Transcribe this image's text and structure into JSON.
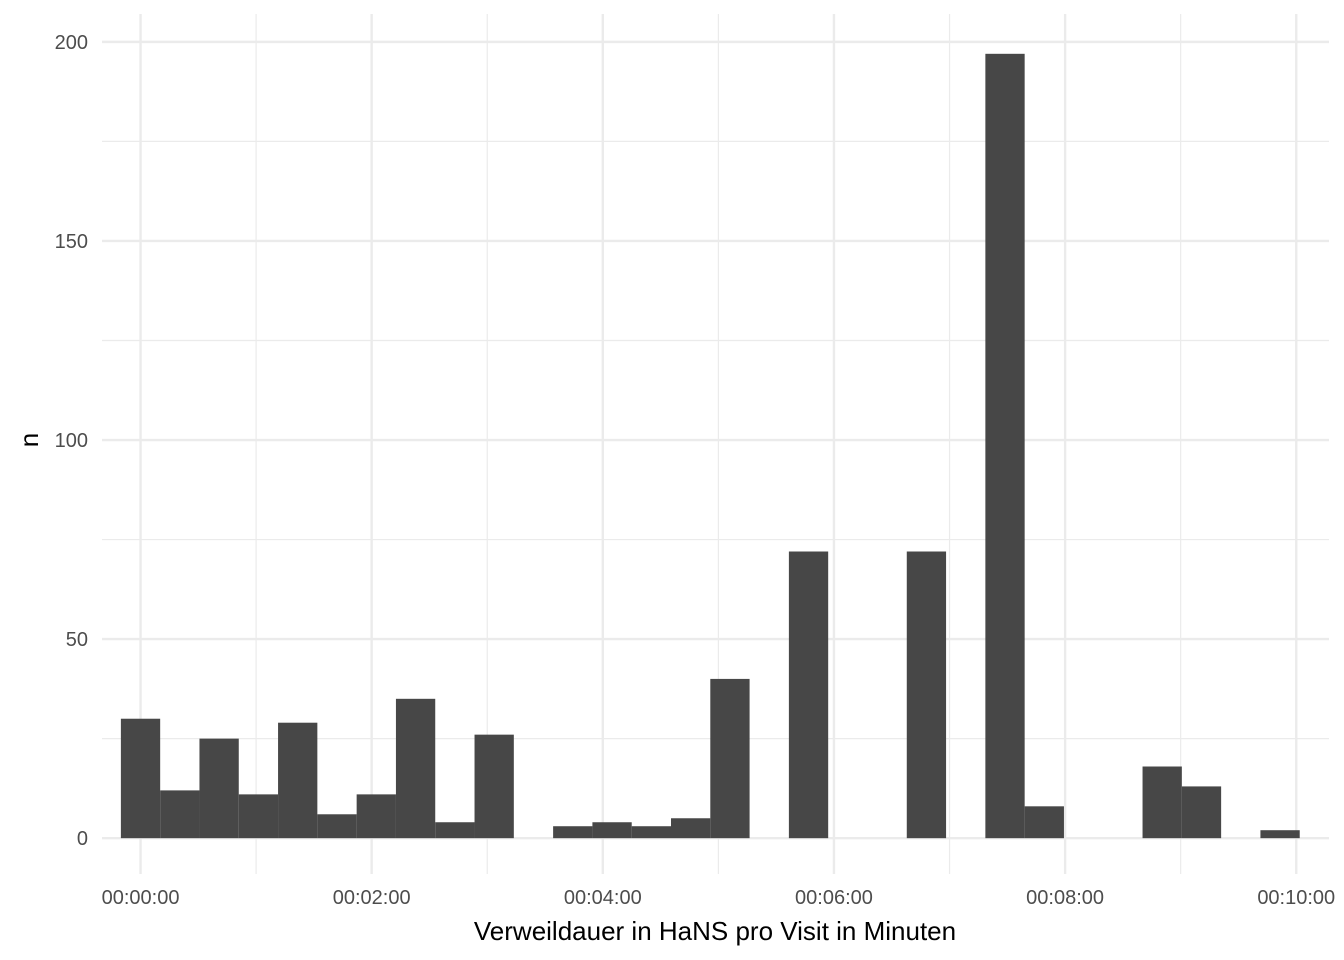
{
  "chart_data": {
    "type": "bar",
    "title": "",
    "xlabel": "Verweildauer in HaNS pro Visit in Minuten",
    "ylabel": "n",
    "x_unit": "seconds",
    "xlim": [
      -20,
      617
    ],
    "ylim": [
      -9,
      207
    ],
    "x_ticks": [
      0,
      120,
      240,
      360,
      480,
      600
    ],
    "x_tick_labels": [
      "00:00:00",
      "00:02:00",
      "00:04:00",
      "00:06:00",
      "00:08:00",
      "00:10:00"
    ],
    "y_ticks": [
      0,
      50,
      100,
      150,
      200
    ],
    "y_tick_labels": [
      "0",
      "50",
      "100",
      "150",
      "200"
    ],
    "grid": true,
    "bin_width_seconds": 20.4,
    "bins": [
      {
        "x": 0.0,
        "n": 30
      },
      {
        "x": 20.4,
        "n": 12
      },
      {
        "x": 40.8,
        "n": 25
      },
      {
        "x": 61.2,
        "n": 11
      },
      {
        "x": 81.6,
        "n": 29
      },
      {
        "x": 102.0,
        "n": 6
      },
      {
        "x": 122.4,
        "n": 11
      },
      {
        "x": 142.8,
        "n": 35
      },
      {
        "x": 163.2,
        "n": 4
      },
      {
        "x": 183.6,
        "n": 26
      },
      {
        "x": 204.0,
        "n": 0
      },
      {
        "x": 224.4,
        "n": 3
      },
      {
        "x": 244.8,
        "n": 4
      },
      {
        "x": 265.2,
        "n": 3
      },
      {
        "x": 285.6,
        "n": 5
      },
      {
        "x": 306.0,
        "n": 40
      },
      {
        "x": 326.4,
        "n": 0
      },
      {
        "x": 346.8,
        "n": 72
      },
      {
        "x": 367.2,
        "n": 0
      },
      {
        "x": 387.6,
        "n": 0
      },
      {
        "x": 408.0,
        "n": 72
      },
      {
        "x": 428.4,
        "n": 0
      },
      {
        "x": 448.8,
        "n": 197
      },
      {
        "x": 469.2,
        "n": 8
      },
      {
        "x": 489.6,
        "n": 0
      },
      {
        "x": 510.0,
        "n": 0
      },
      {
        "x": 530.4,
        "n": 18
      },
      {
        "x": 550.8,
        "n": 13
      },
      {
        "x": 571.2,
        "n": 0
      },
      {
        "x": 591.6,
        "n": 2
      }
    ]
  }
}
